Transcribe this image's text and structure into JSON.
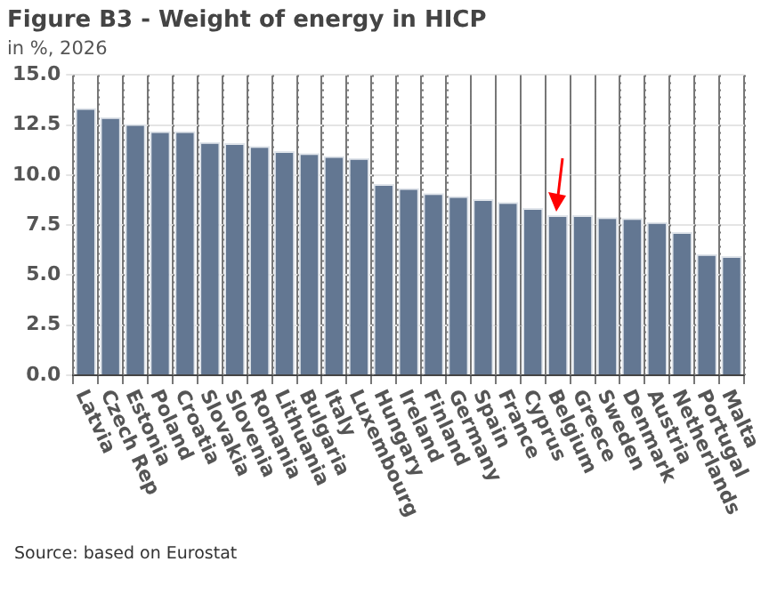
{
  "chart_data": {
    "type": "bar",
    "title": "Figure B3 - Weight of energy in HICP",
    "subtitle": "in %, 2026",
    "categories": [
      "Latvia",
      "Czech Rep",
      "Estonia",
      "Poland",
      "Croatia",
      "Slovakia",
      "Slovenia",
      "Romania",
      "Lithuania",
      "Bulgaria",
      "Italy",
      "Luxembourg",
      "Hungary",
      "Ireland",
      "Finland",
      "Germany",
      "Spain",
      "France",
      "Cyprus",
      "Belgium",
      "Greece",
      "Sweden",
      "Denmark",
      "Austria",
      "Netherlands",
      "Portugal",
      "Malta"
    ],
    "values": [
      13.35,
      12.9,
      12.55,
      12.2,
      12.2,
      11.65,
      11.6,
      11.45,
      11.2,
      11.1,
      10.95,
      10.85,
      9.55,
      9.35,
      9.1,
      8.95,
      8.8,
      8.65,
      8.35,
      8.0,
      8.0,
      7.9,
      7.85,
      7.65,
      7.15,
      6.05,
      5.95
    ],
    "color": "#637792",
    "ylim": [
      0,
      15
    ],
    "yticks": [
      {
        "value": 0,
        "label": "0.0"
      },
      {
        "value": 2.5,
        "label": "2.5"
      },
      {
        "value": 5,
        "label": "5.0"
      },
      {
        "value": 7.5,
        "label": "7.5"
      },
      {
        "value": 10,
        "label": "10.0"
      },
      {
        "value": 12.5,
        "label": "12.5"
      },
      {
        "value": 15,
        "label": "15.0"
      }
    ],
    "grid": true,
    "legend": false,
    "annotations": [
      "Source: based on Eurostat"
    ]
  }
}
